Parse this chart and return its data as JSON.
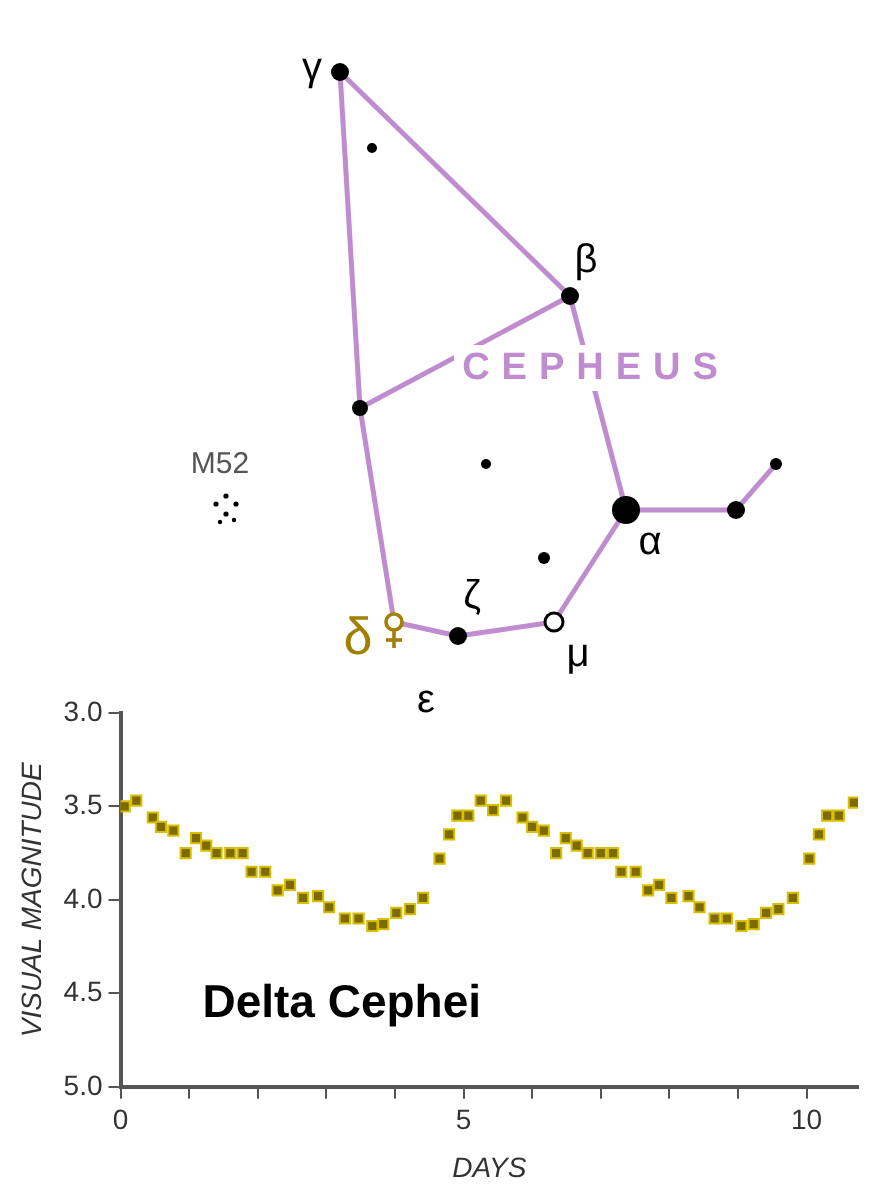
{
  "chart_data": [
    {
      "type": "other",
      "annotations": [
        "γ",
        "β",
        "CEPHEUS",
        "M52",
        "α",
        "δ",
        "ζ",
        "μ",
        "ε"
      ]
    },
    {
      "type": "scatter",
      "xlabel": "DAYS",
      "ylabel": "VISUAL MAGNITUDE",
      "color": "#7d6a00",
      "marker": "square",
      "x": [
        0.06,
        0.23,
        0.47,
        0.59,
        0.77,
        0.95,
        1.1,
        1.25,
        1.4,
        1.6,
        1.78,
        1.91,
        2.11,
        2.29,
        2.47,
        2.66,
        2.88,
        3.04,
        3.27,
        3.47,
        3.67,
        3.83,
        4.02,
        4.22,
        4.41,
        4.65,
        4.79,
        4.91,
        5.07,
        5.25,
        5.43,
        5.62,
        5.86,
        6.0,
        6.17,
        6.35,
        6.49,
        6.65,
        6.81,
        7.0,
        7.18,
        7.3,
        7.51,
        7.69,
        7.85,
        8.03,
        8.28,
        8.44,
        8.66,
        8.84,
        9.05,
        9.23,
        9.41,
        9.59,
        9.8,
        10.04,
        10.18,
        10.3,
        10.47,
        10.69
      ],
      "values": [
        3.5,
        3.47,
        3.56,
        3.61,
        3.63,
        3.75,
        3.67,
        3.71,
        3.75,
        3.75,
        3.75,
        3.85,
        3.85,
        3.95,
        3.92,
        3.99,
        3.98,
        4.04,
        4.1,
        4.1,
        4.14,
        4.13,
        4.07,
        4.05,
        3.99,
        3.78,
        3.65,
        3.55,
        3.55,
        3.47,
        3.52,
        3.47,
        3.56,
        3.61,
        3.63,
        3.75,
        3.67,
        3.71,
        3.75,
        3.75,
        3.75,
        3.85,
        3.85,
        3.95,
        3.92,
        3.99,
        3.98,
        4.04,
        4.1,
        4.1,
        4.14,
        4.13,
        4.07,
        4.05,
        3.99,
        3.78,
        3.65,
        3.55,
        3.55,
        3.48
      ],
      "xlim": [
        0,
        10.75
      ],
      "ylim": [
        5.0,
        3.0
      ],
      "xticks": [
        0,
        {
          "value": 1,
          "label": null
        },
        {
          "value": 2,
          "label": null
        },
        {
          "value": 3,
          "label": null
        },
        {
          "value": 4,
          "label": null
        },
        5,
        {
          "value": 6,
          "label": null
        },
        {
          "value": 7,
          "label": null
        },
        {
          "value": 8,
          "label": null
        },
        {
          "value": 9,
          "label": null
        },
        10
      ],
      "yticks": [
        {
          "value": 3,
          "label": "3.0"
        },
        {
          "value": 3.5,
          "label": "3.5"
        },
        {
          "value": 4,
          "label": "4.0"
        },
        {
          "value": 4.5,
          "label": "4.5"
        },
        {
          "value": 5,
          "label": "5.0"
        }
      ],
      "annotations": [
        "Delta Cephei"
      ]
    }
  ]
}
